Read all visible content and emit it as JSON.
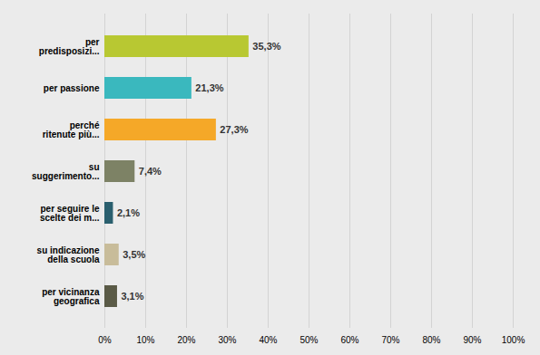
{
  "chart_data": {
    "type": "bar",
    "orientation": "horizontal",
    "categories": [
      "per vicinanza\ngeografica",
      "su indicazione\ndella scuola",
      "per seguire le\nscelte dei m...",
      "su\nsuggerimento...",
      "perché\nritenute più...",
      "per passione",
      "per\npredisposizi..."
    ],
    "values": [
      3.1,
      3.5,
      2.1,
      7.4,
      27.3,
      21.3,
      35.3
    ],
    "value_labels": [
      "3,1%",
      "3,5%",
      "2,1%",
      "7,4%",
      "27,3%",
      "21,3%",
      "35,3%"
    ],
    "data_labels": true,
    "colors": [
      "#5a5a46",
      "#c8bc9a",
      "#2a5f6e",
      "#7d8265",
      "#f5a828",
      "#3ab8be",
      "#b8c832"
    ],
    "xlim": [
      0,
      100
    ],
    "xticks": [
      {
        "value": 0,
        "label": "0%"
      },
      {
        "value": 10,
        "label": "10%"
      },
      {
        "value": 20,
        "label": "20%"
      },
      {
        "value": 30,
        "label": "30%"
      },
      {
        "value": 40,
        "label": "40%"
      },
      {
        "value": 50,
        "label": "50%"
      },
      {
        "value": 60,
        "label": "60%"
      },
      {
        "value": 70,
        "label": "70%"
      },
      {
        "value": 80,
        "label": "80%"
      },
      {
        "value": 90,
        "label": "90%"
      },
      {
        "value": 100,
        "label": "100%"
      }
    ],
    "grid": true
  }
}
